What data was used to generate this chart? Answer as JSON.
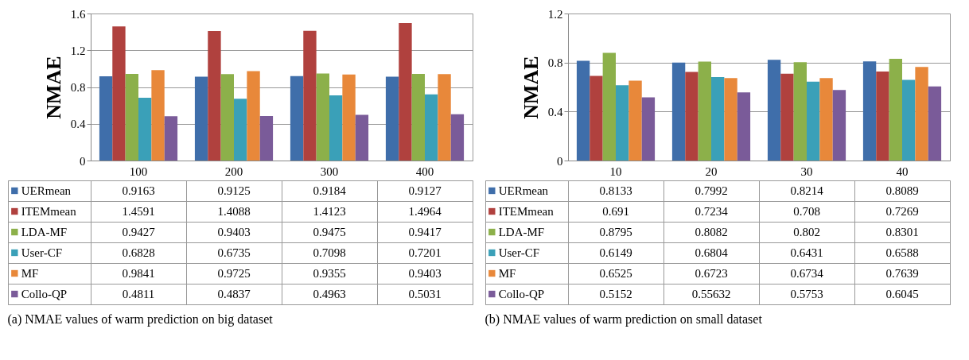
{
  "chart_data": [
    {
      "type": "bar",
      "title": "(a)  NMAE values of warm prediction on big dataset",
      "ylabel": "NMAE",
      "categories": [
        "100",
        "200",
        "300",
        "400"
      ],
      "series": [
        {
          "name": "UERmean",
          "color": "#3f6eaa",
          "values": [
            0.9163,
            0.9125,
            0.9184,
            0.9127
          ]
        },
        {
          "name": "ITEMmean",
          "color": "#b0413e",
          "values": [
            1.4591,
            1.4088,
            1.4123,
            1.4964
          ]
        },
        {
          "name": "LDA-MF",
          "color": "#8cb04a",
          "values": [
            0.9427,
            0.9403,
            0.9475,
            0.9417
          ]
        },
        {
          "name": "User-CF",
          "color": "#3aa0b8",
          "values": [
            0.6828,
            0.6735,
            0.7098,
            0.7201
          ]
        },
        {
          "name": "MF",
          "color": "#e8883a",
          "values": [
            0.9841,
            0.9725,
            0.9355,
            0.9403
          ]
        },
        {
          "name": "Collo-QP",
          "color": "#7a5b99",
          "values": [
            0.4811,
            0.4837,
            0.4963,
            0.5031
          ]
        }
      ],
      "ylim": [
        0,
        1.6
      ],
      "yticks": [
        0,
        0.4,
        0.8,
        1.2,
        1.6
      ],
      "grid": "y",
      "legend": "bottom",
      "data_labels": true
    },
    {
      "type": "bar",
      "title": "(b)  NMAE values of warm prediction on small dataset",
      "ylabel": "NMAE",
      "categories": [
        "10",
        "20",
        "30",
        "40"
      ],
      "series": [
        {
          "name": "UERmean",
          "color": "#3f6eaa",
          "values": [
            0.8133,
            0.7992,
            0.8214,
            0.8089
          ]
        },
        {
          "name": "ITEMmean",
          "color": "#b0413e",
          "values": [
            0.691,
            0.7234,
            0.708,
            0.7269
          ]
        },
        {
          "name": "LDA-MF",
          "color": "#8cb04a",
          "values": [
            0.8795,
            0.8082,
            0.802,
            0.8301
          ]
        },
        {
          "name": "User-CF",
          "color": "#3aa0b8",
          "values": [
            0.6149,
            0.6804,
            0.6431,
            0.6588
          ]
        },
        {
          "name": "MF",
          "color": "#e8883a",
          "values": [
            0.6525,
            0.6723,
            0.6734,
            0.7639
          ]
        },
        {
          "name": "Collo-QP",
          "color": "#7a5b99",
          "values": [
            0.5152,
            0.55632,
            0.5753,
            0.6045
          ]
        }
      ],
      "ylim": [
        0,
        1.2
      ],
      "yticks": [
        0,
        0.4,
        0.8,
        1.2
      ],
      "grid": "y",
      "legend": "bottom",
      "data_labels": true
    }
  ]
}
